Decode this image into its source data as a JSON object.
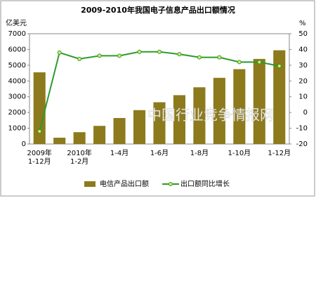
{
  "chart_data": {
    "type": "bar-line",
    "title": "2009-2010年我国电子信息产品出口额情况",
    "y_label": "亿美元",
    "y2_label": "%",
    "categories": [
      "2009年1-12月",
      null,
      "2010年1-2月",
      null,
      "1-4月",
      null,
      "1-6月",
      null,
      "1-8月",
      null,
      "1-10月",
      null,
      "1-12月"
    ],
    "series": [
      {
        "name": "电信产品出口额",
        "color": "#8c7a1c",
        "kind": "bar",
        "axis": "y",
        "values": [
          4550,
          400,
          750,
          1150,
          1650,
          2150,
          2650,
          3100,
          3600,
          4200,
          4750,
          5400,
          5950
        ]
      },
      {
        "name": "出口额同比增长",
        "color": "#2e9a2e",
        "kind": "line",
        "axis": "y2",
        "values": [
          -12,
          38,
          34,
          36,
          36,
          38.5,
          38.5,
          37,
          35,
          35,
          32,
          32,
          29.5
        ]
      }
    ],
    "ylim": [
      0,
      7000
    ],
    "yticks": [
      0,
      1000,
      2000,
      3000,
      4000,
      5000,
      6000,
      7000
    ],
    "y2lim": [
      -20,
      50
    ],
    "y2ticks": [
      -20,
      -10,
      0,
      10,
      20,
      30,
      40,
      50
    ],
    "annotation": "中国行业竞争情报网"
  }
}
